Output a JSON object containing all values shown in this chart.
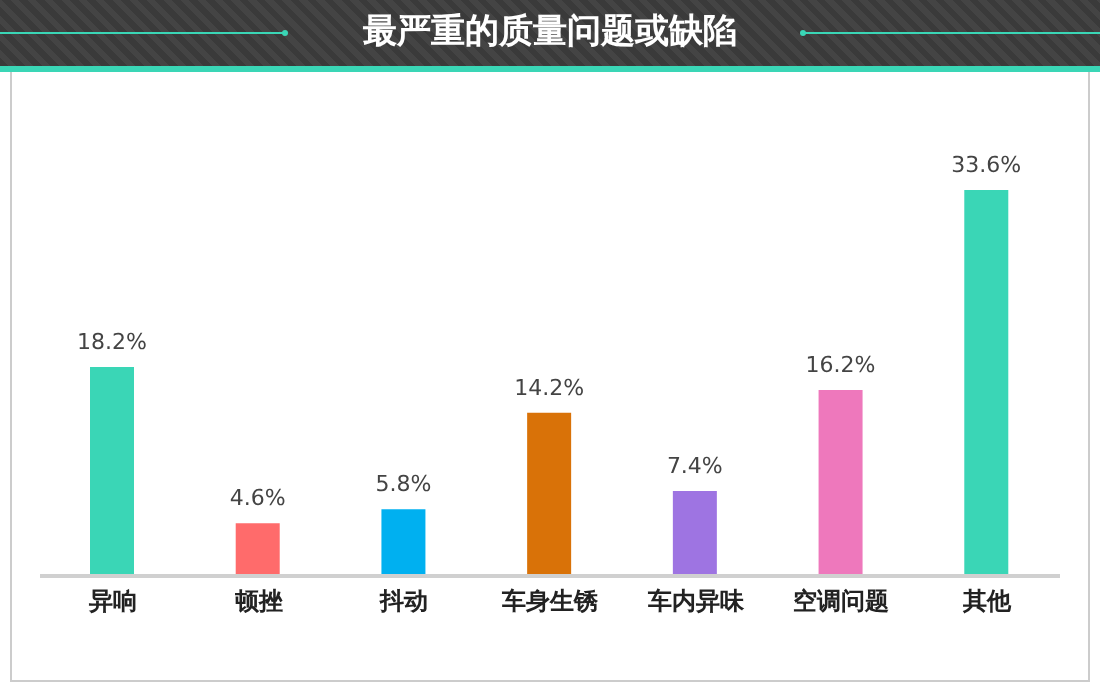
{
  "chart_data": {
    "type": "bar",
    "title": "最严重的质量问题或缺陷",
    "categories": [
      "异响",
      "顿挫",
      "抖动",
      "车身生锈",
      "车内异味",
      "空调问题",
      "其他"
    ],
    "values": [
      18.2,
      4.6,
      5.8,
      14.2,
      7.4,
      16.2,
      33.6
    ],
    "colors": [
      "#3ad6b6",
      "#ff6b6b",
      "#00b0f0",
      "#d97208",
      "#9e74e2",
      "#ee78bc",
      "#3ad6b6"
    ],
    "value_labels": [
      "18.2%",
      "4.6%",
      "5.8%",
      "14.2%",
      "7.4%",
      "16.2%",
      "33.6%"
    ],
    "grid": false,
    "legend": false
  }
}
